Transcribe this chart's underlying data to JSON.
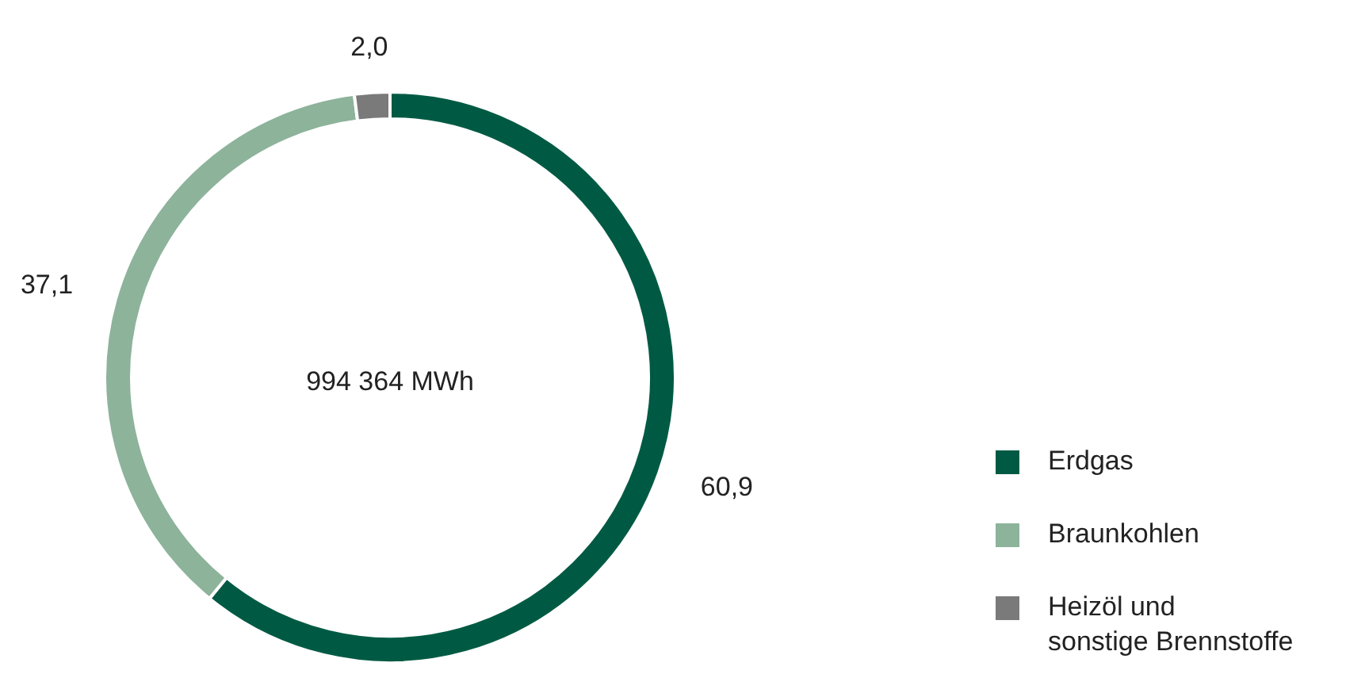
{
  "chart_data": {
    "type": "donut",
    "categories": [
      "Erdgas",
      "Braunkohlen",
      "Heizöl und\nsonstige Brennstoffe"
    ],
    "values": [
      60.9,
      37.1,
      2.0
    ],
    "value_labels": [
      "60,9",
      "37,1",
      "2,0"
    ],
    "colors": [
      "#005a43",
      "#8db39b",
      "#7a7a7a"
    ],
    "annotations": [
      "994 364 MWh"
    ],
    "legend": "right"
  }
}
